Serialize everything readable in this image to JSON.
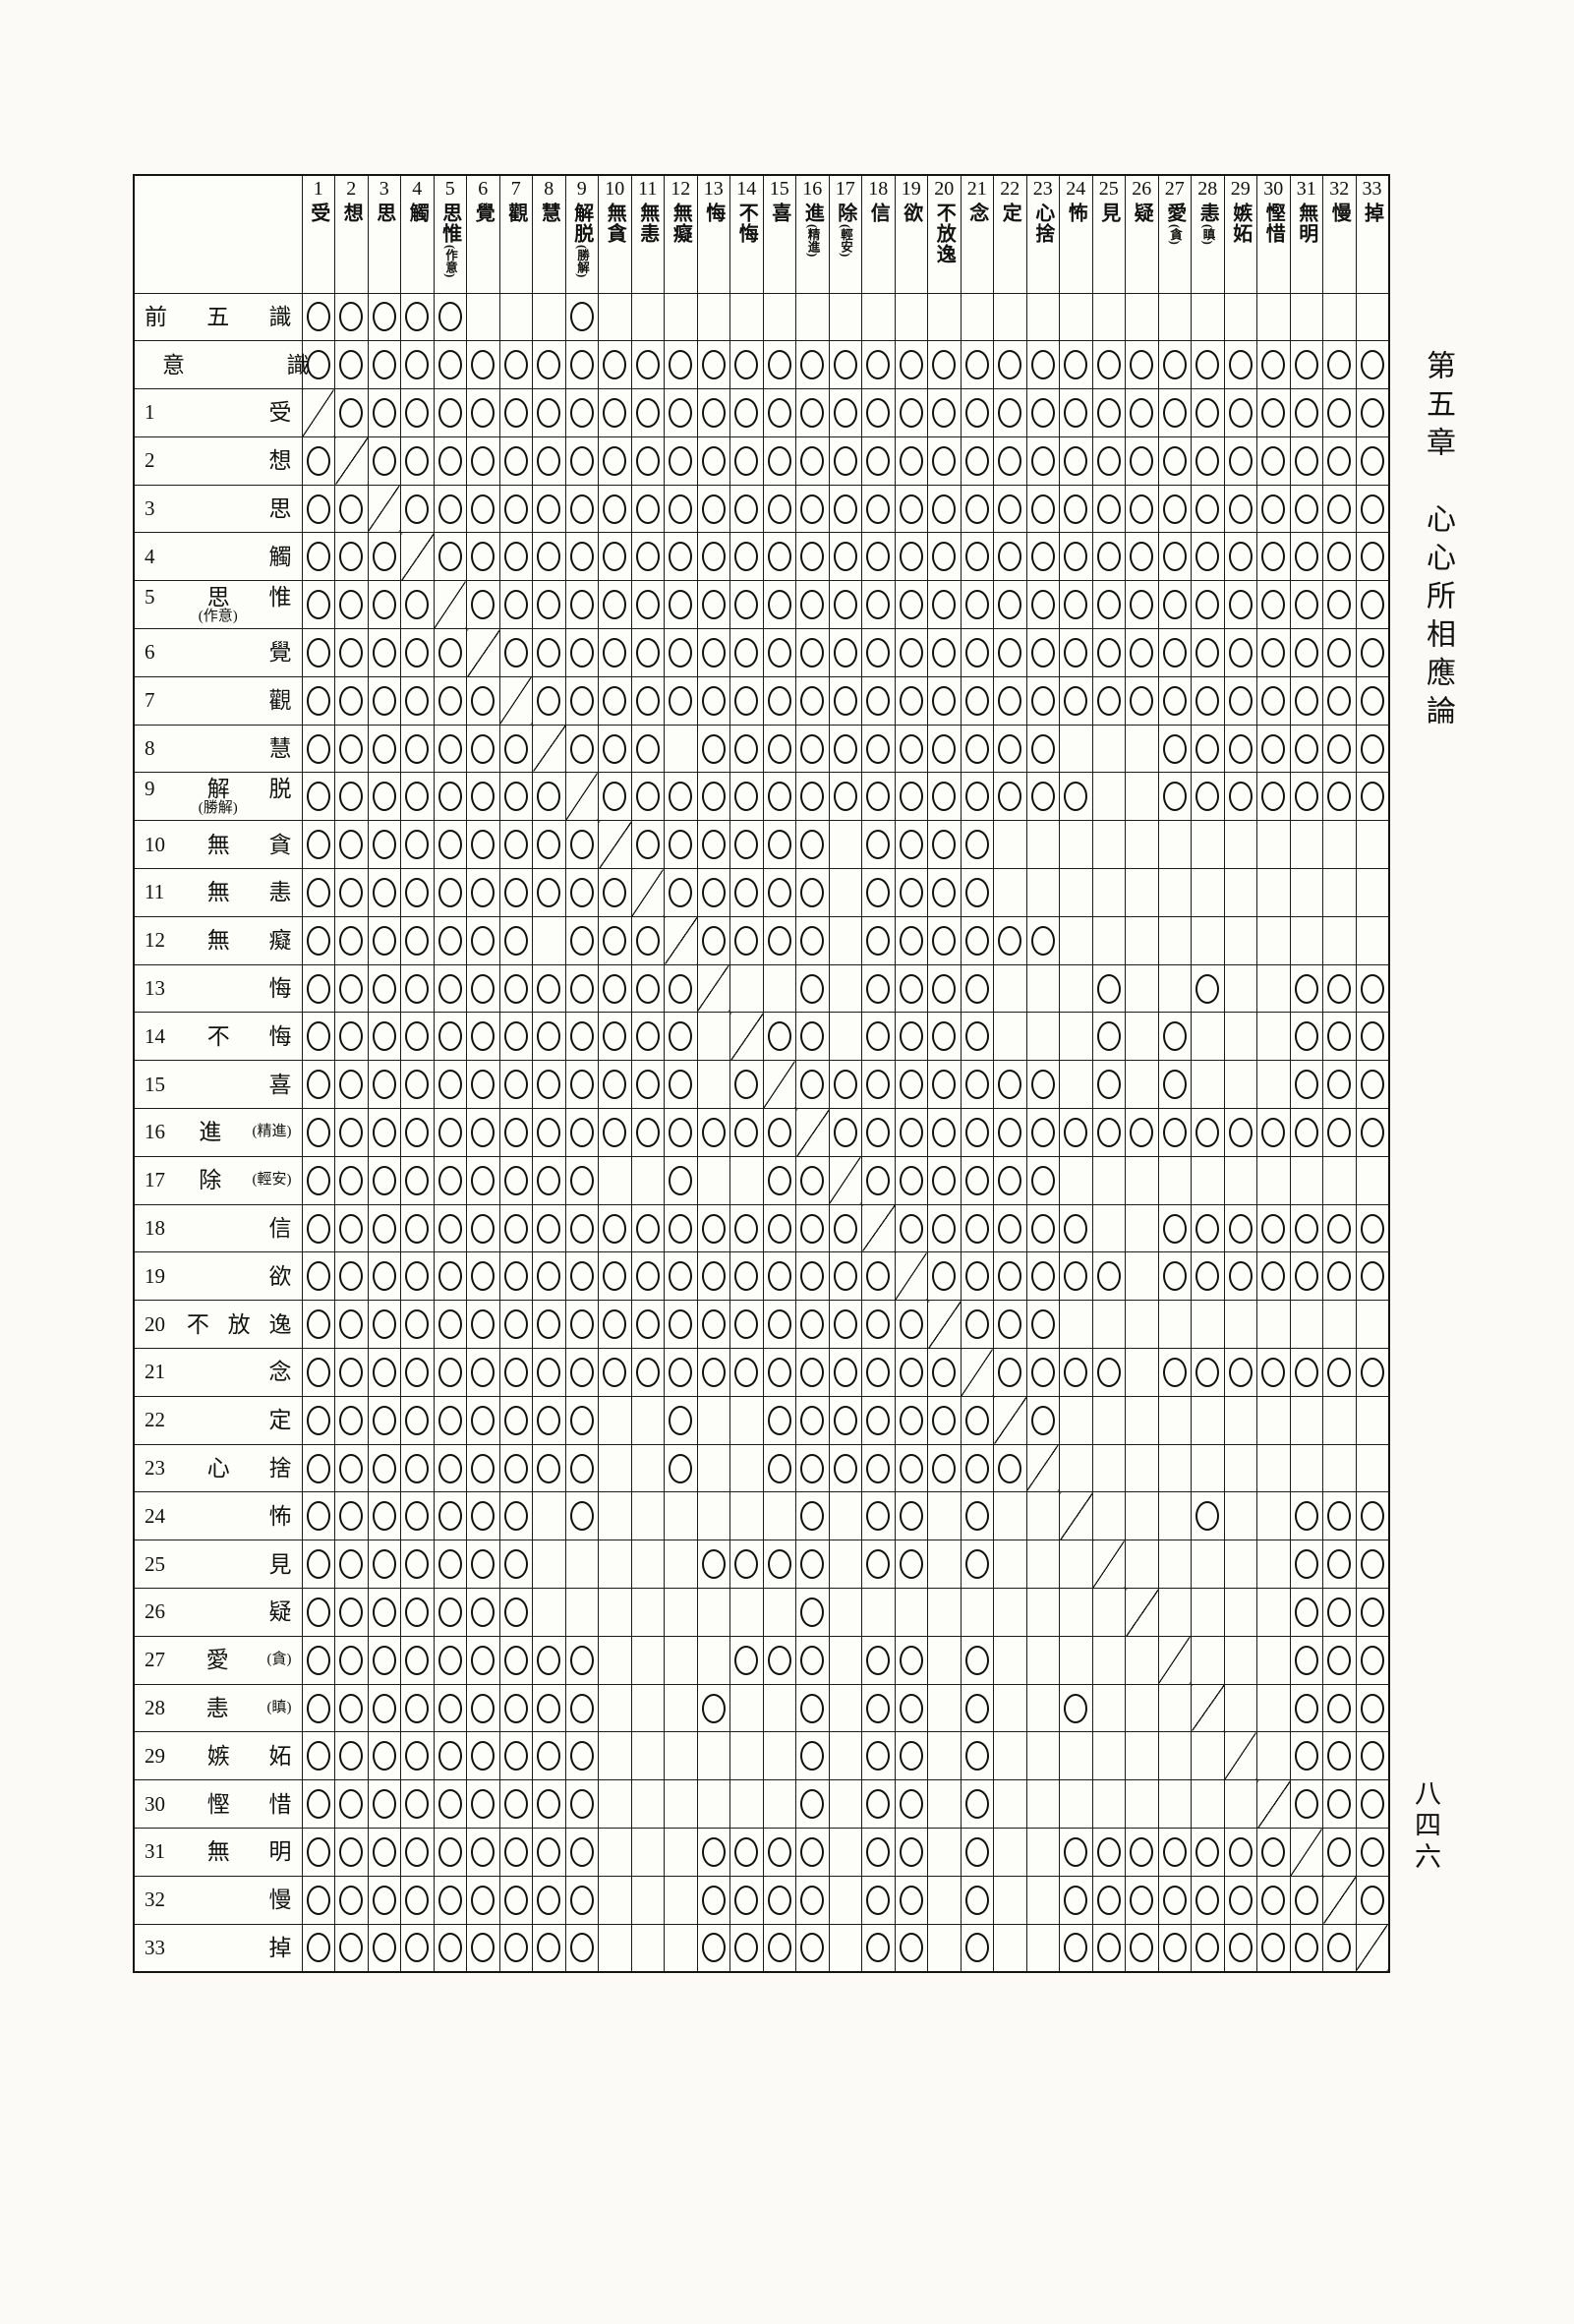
{
  "page": {
    "chapter_header": "第五章　心心所相應論",
    "page_number": "八四六"
  },
  "table": {
    "corner_label": "",
    "legend": {
      "circle_mark": "○",
      "diagonal_mark": "identity-diagonal"
    },
    "columns": [
      {
        "num": "1",
        "label": "受",
        "sub": ""
      },
      {
        "num": "2",
        "label": "想",
        "sub": ""
      },
      {
        "num": "3",
        "label": "思",
        "sub": ""
      },
      {
        "num": "4",
        "label": "觸",
        "sub": ""
      },
      {
        "num": "5",
        "label": "思惟",
        "sub": "(作意)"
      },
      {
        "num": "6",
        "label": "覺",
        "sub": ""
      },
      {
        "num": "7",
        "label": "觀",
        "sub": ""
      },
      {
        "num": "8",
        "label": "慧",
        "sub": ""
      },
      {
        "num": "9",
        "label": "解脱",
        "sub": "(勝解)"
      },
      {
        "num": "10",
        "label": "無貪",
        "sub": ""
      },
      {
        "num": "11",
        "label": "無恚",
        "sub": ""
      },
      {
        "num": "12",
        "label": "無癡",
        "sub": ""
      },
      {
        "num": "13",
        "label": "悔",
        "sub": ""
      },
      {
        "num": "14",
        "label": "不悔",
        "sub": ""
      },
      {
        "num": "15",
        "label": "喜",
        "sub": ""
      },
      {
        "num": "16",
        "label": "進",
        "sub": "(精進)"
      },
      {
        "num": "17",
        "label": "除",
        "sub": "(輕安)"
      },
      {
        "num": "18",
        "label": "信",
        "sub": ""
      },
      {
        "num": "19",
        "label": "欲",
        "sub": ""
      },
      {
        "num": "20",
        "label": "不放逸",
        "sub": ""
      },
      {
        "num": "21",
        "label": "念",
        "sub": ""
      },
      {
        "num": "22",
        "label": "定",
        "sub": ""
      },
      {
        "num": "23",
        "label": "心捨",
        "sub": ""
      },
      {
        "num": "24",
        "label": "怖",
        "sub": ""
      },
      {
        "num": "25",
        "label": "見",
        "sub": ""
      },
      {
        "num": "26",
        "label": "疑",
        "sub": ""
      },
      {
        "num": "27",
        "label": "愛",
        "sub": "(貪)"
      },
      {
        "num": "28",
        "label": "恚",
        "sub": "(瞋)"
      },
      {
        "num": "29",
        "label": "嫉妬",
        "sub": ""
      },
      {
        "num": "30",
        "label": "慳惜",
        "sub": ""
      },
      {
        "num": "31",
        "label": "無明",
        "sub": ""
      },
      {
        "num": "32",
        "label": "慢",
        "sub": ""
      },
      {
        "num": "33",
        "label": "掉",
        "sub": ""
      }
    ],
    "rows": [
      {
        "num": "",
        "label": "前五識",
        "sub": "",
        "cells": "ooooo...o........................"
      },
      {
        "num": "",
        "label": "意識",
        "sub": "",
        "cells": "ooooooooooooooooooooooooooooooooo"
      },
      {
        "num": "1",
        "label": "受",
        "sub": "",
        "cells": "doooooooooooooooooooooooooooooooo"
      },
      {
        "num": "2",
        "label": "想",
        "sub": "",
        "cells": "odooooooooooooooooooooooooooooooo"
      },
      {
        "num": "3",
        "label": "思",
        "sub": "",
        "cells": "oodoooooooooooooooooooooooooooooo"
      },
      {
        "num": "4",
        "label": "觸",
        "sub": "",
        "cells": "ooodooooooooooooooooooooooooooooo"
      },
      {
        "num": "5",
        "label": "思惟",
        "sub": "(作意)",
        "cells": "oooodoooooooooooooooooooooooooooo"
      },
      {
        "num": "6",
        "label": "覺",
        "sub": "",
        "cells": "ooooodooooooooooooooooooooooooooo"
      },
      {
        "num": "7",
        "label": "觀",
        "sub": "",
        "cells": "oooooodoooooooooooooooooooooooooo"
      },
      {
        "num": "8",
        "label": "慧",
        "sub": "",
        "cells": "ooooooodooo.ooooooooooo...ooooooo"
      },
      {
        "num": "9",
        "label": "解脱",
        "sub": "(勝解)",
        "cells": "oooooooodooooooooooooooo..ooooooo"
      },
      {
        "num": "10",
        "label": "無貪",
        "sub": "",
        "cells": "ooooooooodoooooo.oooo............"
      },
      {
        "num": "11",
        "label": "無恚",
        "sub": "",
        "cells": "oooooooooodooooo.oooo............"
      },
      {
        "num": "12",
        "label": "無癡",
        "sub": "",
        "cells": "ooooooo.ooodoooo.oooooo.........."
      },
      {
        "num": "13",
        "label": "悔",
        "sub": "",
        "cells": "ooooooooooood..o.oooo...o..o..ooo"
      },
      {
        "num": "14",
        "label": "不悔",
        "sub": "",
        "cells": "oooooooooooo.doo.oooo...o.o...ooo"
      },
      {
        "num": "15",
        "label": "喜",
        "sub": "",
        "cells": "oooooooooooo.odoooooooo.o.o...ooo"
      },
      {
        "num": "16",
        "label": "進",
        "sub": "(精進)",
        "cells": "ooooooooooooooodooooooooooooooooo"
      },
      {
        "num": "17",
        "label": "除",
        "sub": "(輕安)",
        "cells": "ooooooooo..o..oodoooooo.........."
      },
      {
        "num": "18",
        "label": "信",
        "sub": "",
        "cells": "ooooooooooooooooodoooooo..ooooooo"
      },
      {
        "num": "19",
        "label": "欲",
        "sub": "",
        "cells": "oooooooooooooooooodoooooo.ooooooo"
      },
      {
        "num": "20",
        "label": "不放逸",
        "sub": "",
        "cells": "ooooooooooooooooooodooo.........."
      },
      {
        "num": "21",
        "label": "念",
        "sub": "",
        "cells": "oooooooooooooooooooodoooo.ooooooo"
      },
      {
        "num": "22",
        "label": "定",
        "sub": "",
        "cells": "ooooooooo..o..ooooooodo.........."
      },
      {
        "num": "23",
        "label": "心捨",
        "sub": "",
        "cells": "ooooooooo..o..ooooooood.........."
      },
      {
        "num": "24",
        "label": "怖",
        "sub": "",
        "cells": "ooooooo.o......o.oo.o..d...o..ooo"
      },
      {
        "num": "25",
        "label": "見",
        "sub": "",
        "cells": "ooooooo.....oooo.oo.o...d.....ooo"
      },
      {
        "num": "26",
        "label": "疑",
        "sub": "",
        "cells": "ooooooo........o.........d....ooo"
      },
      {
        "num": "27",
        "label": "愛",
        "sub": "(貪)",
        "cells": "ooooooooo....ooo.oo.o.....d...ooo"
      },
      {
        "num": "28",
        "label": "恚",
        "sub": "(瞋)",
        "cells": "ooooooooo...o..o.oo.o..o...d..ooo"
      },
      {
        "num": "29",
        "label": "嫉妬",
        "sub": "",
        "cells": "ooooooooo......o.oo.o.......d.ooo"
      },
      {
        "num": "30",
        "label": "慳惜",
        "sub": "",
        "cells": "ooooooooo......o.oo.o........dooo"
      },
      {
        "num": "31",
        "label": "無明",
        "sub": "",
        "cells": "ooooooooo...oooo.oo.o..ooooooodoo"
      },
      {
        "num": "32",
        "label": "慢",
        "sub": "",
        "cells": "ooooooooo...oooo.oo.o..oooooooodo"
      },
      {
        "num": "33",
        "label": "掉",
        "sub": "",
        "cells": "ooooooooo...oooo.oo.o..oooooooood"
      }
    ]
  }
}
